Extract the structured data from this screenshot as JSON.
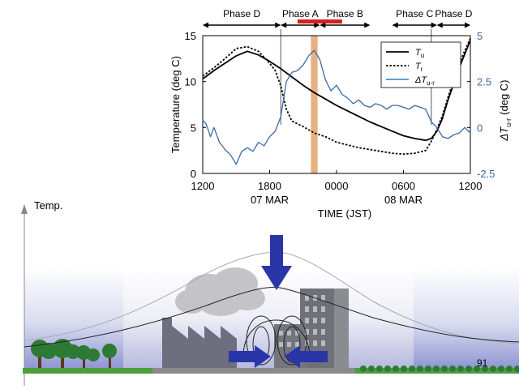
{
  "slide": {
    "temp_axis_label": "Temp.",
    "page_number": "91"
  },
  "chart_data": {
    "type": "line",
    "xlabel": "TIME (JST)",
    "x_ticks": [
      "1200",
      "1800",
      "0000",
      "0600",
      "1200"
    ],
    "date_labels": [
      "07 MAR",
      "08 MAR"
    ],
    "x_hours_range": [
      0,
      24
    ],
    "y_left": {
      "label": "Temperature (deg C)",
      "range": [
        0,
        15
      ],
      "ticks": [
        "0",
        "5",
        "10",
        "15"
      ]
    },
    "y_right": {
      "label_main": "ΔT",
      "label_sub": "u-r",
      "label_unit": "(deg C)",
      "range": [
        -2.5,
        5
      ],
      "ticks": [
        "-2.5",
        "0",
        "2.5",
        "5"
      ],
      "color": "#3a6aa8"
    },
    "phases": [
      {
        "label": "Phase D",
        "start": 0,
        "end": 7
      },
      {
        "label": "Phase A",
        "start": 7,
        "end": 10.5
      },
      {
        "label": "Phase B",
        "start": 10.5,
        "end": 15
      },
      {
        "label": "Phase  C",
        "start": 17,
        "end": 21
      },
      {
        "label": "Phase D",
        "start": 21,
        "end": 24
      }
    ],
    "red_bar": {
      "start": 8.5,
      "end": 12.5,
      "color": "#d42020"
    },
    "orange_band": {
      "start": 9.7,
      "end": 10.3,
      "color": "#e3a36b"
    },
    "markers_hours": [
      7,
      20.5
    ],
    "legend": {
      "position": "top-right",
      "entries": [
        {
          "main": "T",
          "sub": "u",
          "style": "solid",
          "color": "#000000"
        },
        {
          "main": "T",
          "sub": "r",
          "style": "dotted",
          "color": "#000000"
        },
        {
          "main": "ΔT",
          "sub": "u-r",
          "style": "solid",
          "color": "#4a90c8"
        }
      ]
    },
    "series": [
      {
        "name": "Tu",
        "axis": "left",
        "style": "solid",
        "color": "#000000",
        "x": [
          0,
          1,
          2,
          3,
          4,
          5,
          6,
          7,
          8,
          9,
          10,
          11,
          12,
          13,
          14,
          15,
          16,
          17,
          18,
          19,
          20,
          20.5,
          21,
          21.5,
          22,
          23,
          24
        ],
        "y": [
          10.3,
          11.2,
          12,
          12.8,
          13.3,
          12.9,
          12.2,
          11.4,
          10.5,
          9.6,
          8.8,
          8.1,
          7.4,
          6.8,
          6.2,
          5.6,
          5.1,
          4.6,
          4.1,
          3.8,
          3.6,
          3.8,
          4.6,
          6,
          8,
          11.5,
          14.5
        ]
      },
      {
        "name": "Tr",
        "axis": "left",
        "style": "dotted",
        "color": "#000000",
        "x": [
          0,
          1,
          2,
          3,
          4,
          5,
          6,
          6.5,
          7,
          7.5,
          8,
          9,
          10,
          11,
          12,
          13,
          14,
          15,
          16,
          17,
          18,
          19,
          20,
          20.5,
          21,
          21.5,
          22,
          23,
          24
        ],
        "y": [
          10.6,
          11.5,
          12.5,
          13.6,
          13.8,
          13.3,
          12,
          11.2,
          9.5,
          7,
          5.7,
          5.1,
          4.4,
          4,
          3.4,
          3.1,
          2.8,
          2.6,
          2.4,
          2.2,
          2.1,
          2.2,
          2.5,
          3.5,
          4.8,
          6.3,
          8.3,
          12,
          14.7
        ]
      },
      {
        "name": "ΔTu-r",
        "axis": "right",
        "style": "solid",
        "color": "#3a6aa8",
        "x": [
          0,
          0.3,
          0.7,
          1,
          1.5,
          2,
          2.5,
          3,
          3.5,
          4,
          4.5,
          5,
          5.5,
          6,
          6.5,
          7,
          7.5,
          8,
          8.5,
          9,
          9.5,
          10,
          10.5,
          11,
          11.5,
          12,
          12.5,
          13,
          13.5,
          14,
          14.5,
          15,
          15.5,
          16,
          16.5,
          17,
          17.5,
          18,
          18.5,
          19,
          19.5,
          20,
          20.5,
          21,
          21.5,
          22,
          22.5,
          23,
          23.5,
          24
        ],
        "y": [
          0.4,
          0.2,
          -0.5,
          0,
          -0.8,
          -1.2,
          -1.5,
          -2,
          -1.3,
          -1.1,
          -1.3,
          -0.8,
          -1,
          -0.5,
          -0.2,
          0.6,
          2.5,
          3,
          3.1,
          3.4,
          3.9,
          4.2,
          3.7,
          2.6,
          2,
          2.3,
          1.8,
          1.6,
          1.3,
          1.5,
          1.2,
          1.1,
          1.3,
          1.2,
          1,
          1.2,
          1.2,
          1.1,
          1,
          1.2,
          1.1,
          1,
          0.3,
          0,
          -0.5,
          -0.6,
          -0.4,
          -0.3,
          0,
          -0.3
        ]
      }
    ]
  }
}
